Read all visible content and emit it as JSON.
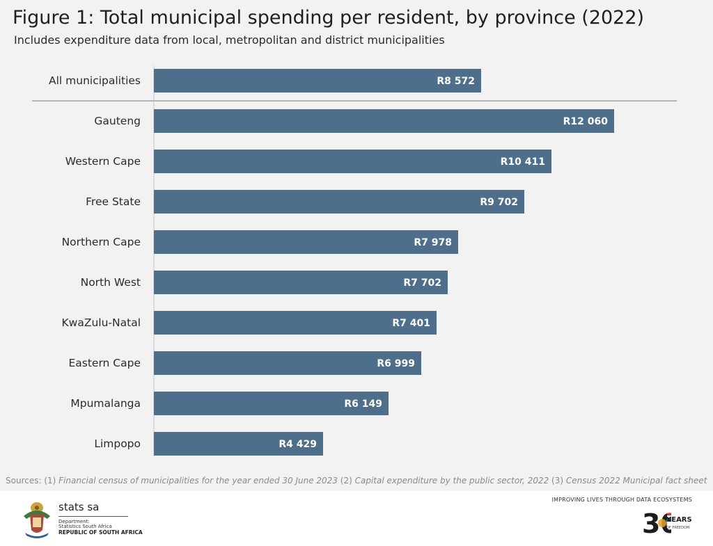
{
  "header": {
    "title": "Figure 1: Total municipal spending per resident, by province (2022)",
    "subtitle": "Includes expenditure data from local, metropolitan and district municipalities"
  },
  "chart_data": {
    "type": "bar",
    "orientation": "horizontal",
    "title": "Figure 1: Total municipal spending per resident, by province (2022)",
    "subtitle": "Includes expenditure data from local, metropolitan and district municipalities",
    "categories": [
      "All municipalities",
      "Gauteng",
      "Western Cape",
      "Free State",
      "Northern Cape",
      "North West",
      "KwaZulu-Natal",
      "Eastern Cape",
      "Mpumalanga",
      "Limpopo"
    ],
    "values": [
      8572,
      12060,
      10411,
      9702,
      7978,
      7702,
      7401,
      6999,
      6149,
      4429
    ],
    "labels": [
      "R8 572",
      "R12 060",
      "R10 411",
      "R9 702",
      "R7 978",
      "R7 702",
      "R7 401",
      "R6 999",
      "R6 149",
      "R4 429"
    ],
    "unit": "Rand per resident",
    "xlim": [
      0,
      12060
    ],
    "xlabel": "",
    "ylabel": "",
    "grid": false,
    "legend": "none",
    "bar_color": "#4e6f8c",
    "separator_after_first": true
  },
  "sources": {
    "prefix": "Sources: (1) ",
    "item1": "Financial census of municipalities for the year ended 30 June 2023",
    "sep2": "  (2) ",
    "item2": "Capital expenditure by the public sector, 2022",
    "sep3": "  (3) ",
    "item3": "Census 2022 Municipal fact sheet"
  },
  "footer": {
    "org_name": "stats sa",
    "dept_line1": "Department:",
    "dept_line2": "Statistics South Africa",
    "republic": "REPUBLIC OF SOUTH AFRICA",
    "tagline": "IMPROVING LIVES THROUGH DATA ECOSYSTEMS",
    "badge_number": "30",
    "badge_years": "YEARS",
    "badge_freedom": "OF FREEDOM"
  },
  "colors": {
    "background": "#f2f2f2",
    "bar": "#4e6f8c",
    "separator": "#b5b5b5",
    "axis": "#c8c8c8"
  }
}
